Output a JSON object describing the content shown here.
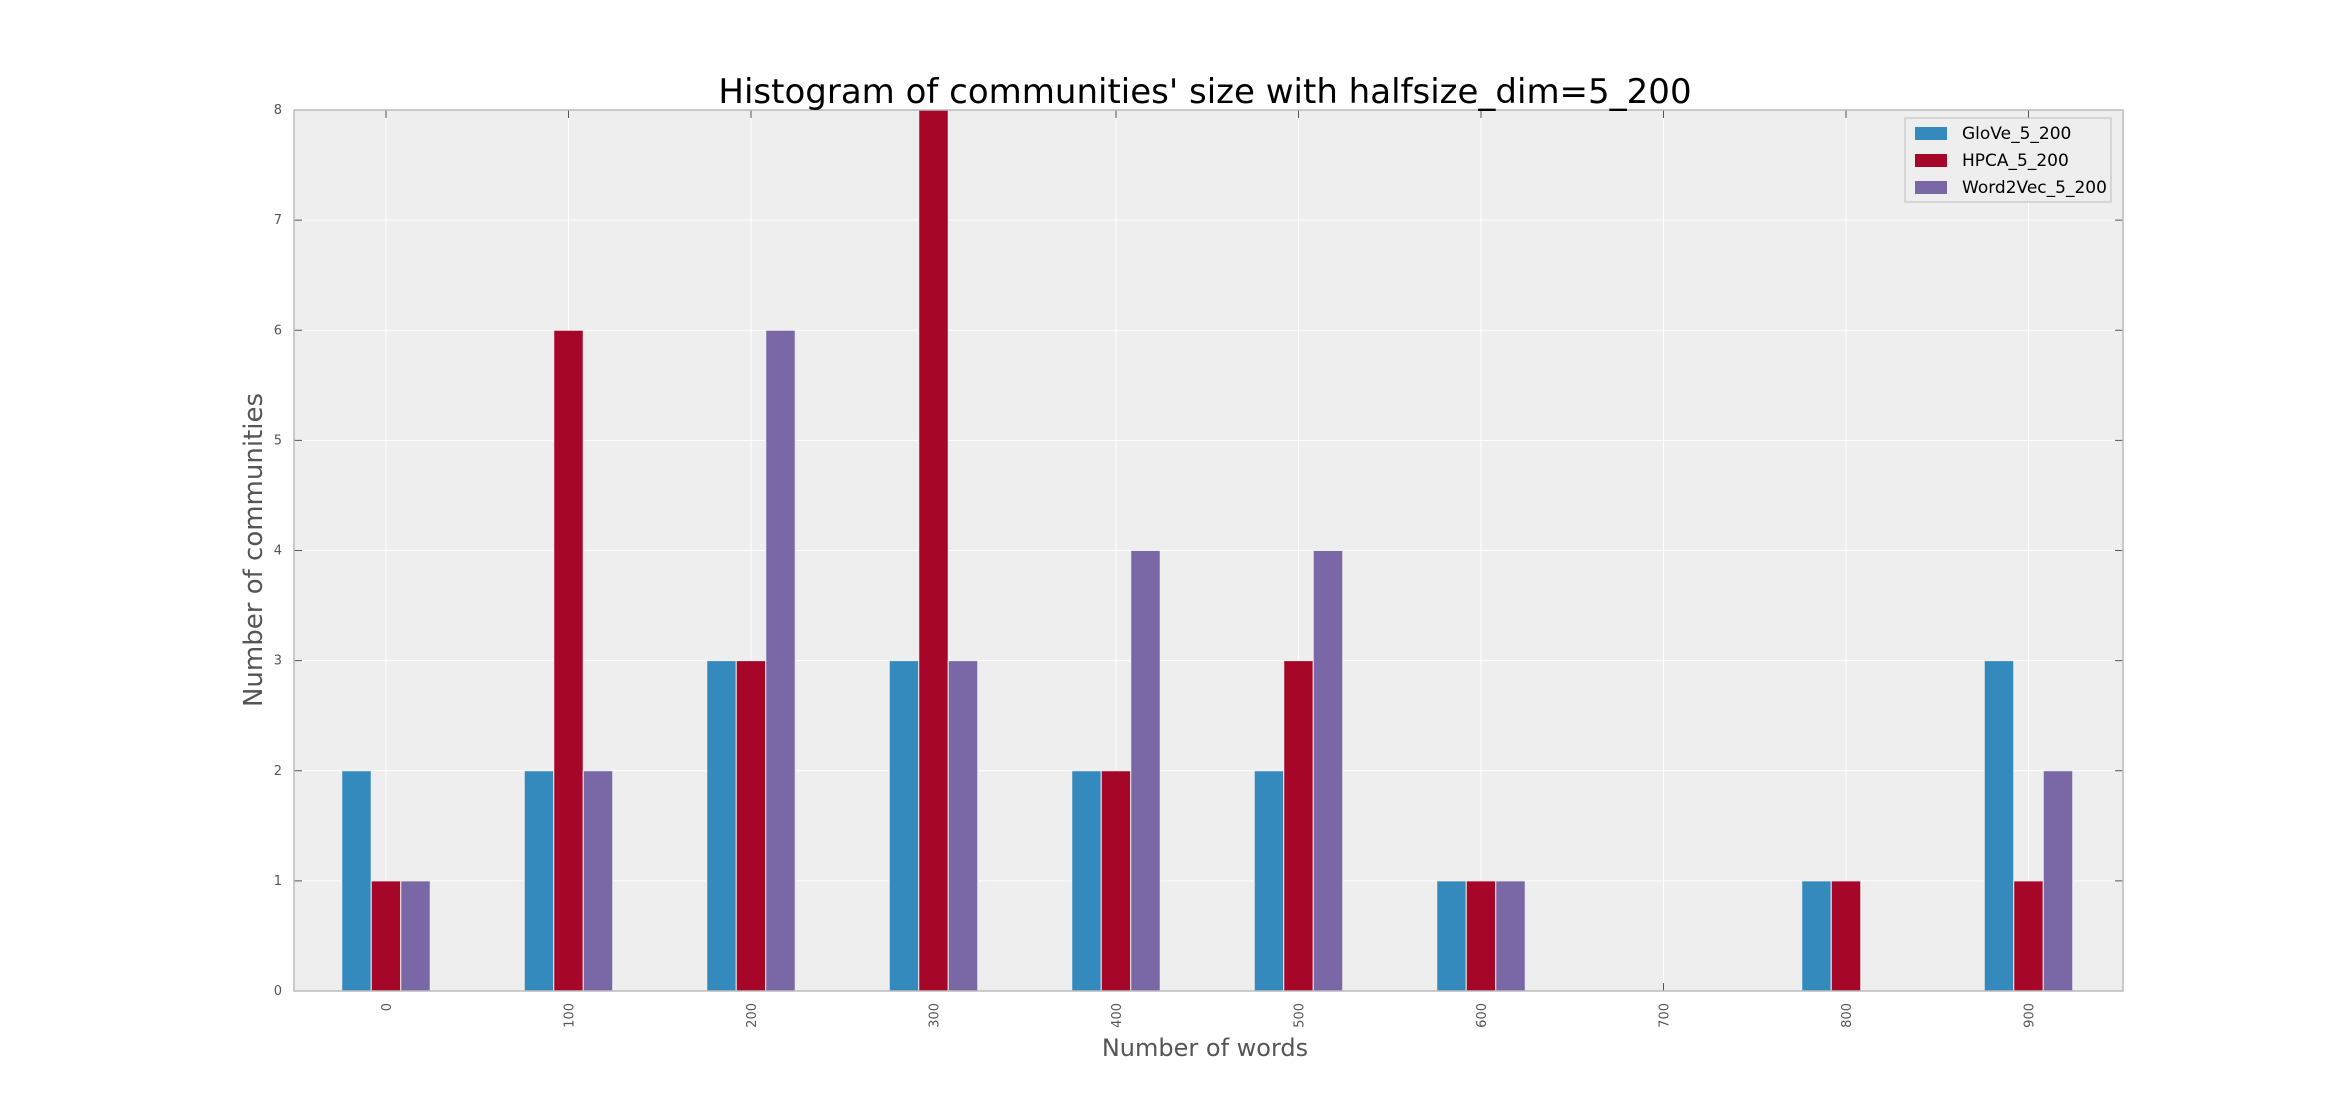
{
  "chart_data": {
    "type": "bar",
    "title": "Histogram of communities' size with halfsize_dim=5_200",
    "xlabel": "Number of words",
    "ylabel": "Number of communities",
    "categories": [
      "0",
      "100",
      "200",
      "300",
      "400",
      "500",
      "600",
      "700",
      "800",
      "900"
    ],
    "series": [
      {
        "name": "GloVe_5_200",
        "color": "#348abd",
        "values": [
          2,
          2,
          3,
          3,
          2,
          2,
          1,
          0,
          1,
          3
        ]
      },
      {
        "name": "HPCA_5_200",
        "color": "#a60628",
        "values": [
          1,
          6,
          3,
          8,
          2,
          3,
          1,
          0,
          1,
          1
        ]
      },
      {
        "name": "Word2Vec_5_200",
        "color": "#7a68a6",
        "values": [
          1,
          2,
          6,
          3,
          4,
          4,
          1,
          0,
          0,
          2
        ]
      }
    ],
    "ylim": [
      0,
      8
    ],
    "yticks": [
      "0",
      "1",
      "2",
      "3",
      "4",
      "5",
      "6",
      "7",
      "8"
    ],
    "grid": true,
    "legend_position": "top-right",
    "background_color": "#eeeeee",
    "grid_color": "#ffffff"
  }
}
